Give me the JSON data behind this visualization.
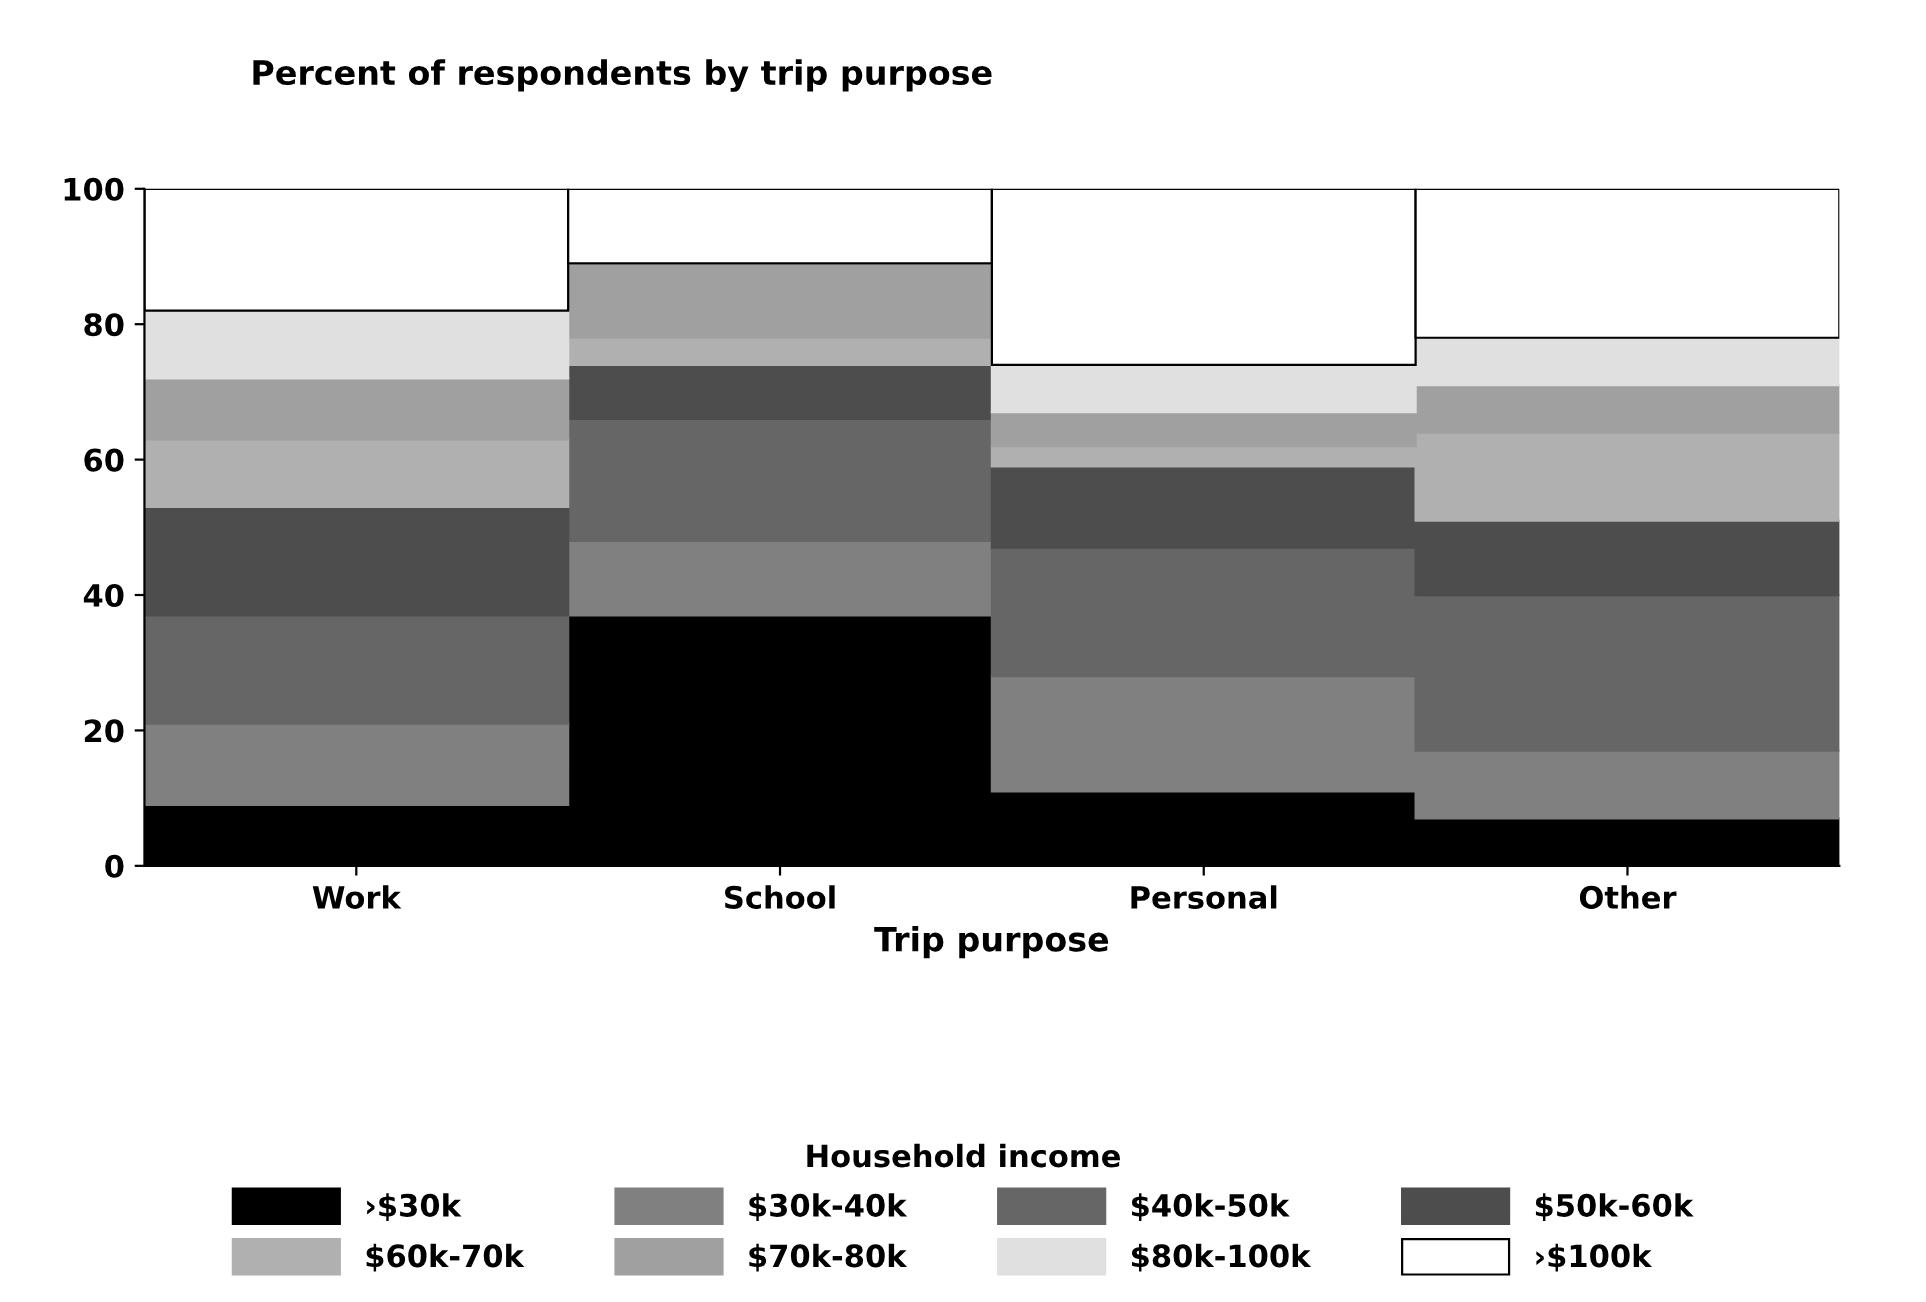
{
  "chart_data": {
    "type": "bar",
    "stacked": true,
    "title": "Percent of respondents by trip purpose",
    "xlabel": "Trip purpose",
    "legend_title": "Household income",
    "categories": [
      "Work",
      "School",
      "Personal",
      "Other"
    ],
    "series": [
      {
        "name": "›$30k",
        "color": "#000000",
        "values": [
          9,
          37,
          11,
          7
        ]
      },
      {
        "name": "$30k-40k",
        "color": "#808080",
        "values": [
          12,
          11,
          17,
          10
        ]
      },
      {
        "name": "$40k-50k",
        "color": "#666666",
        "values": [
          16,
          18,
          19,
          23
        ]
      },
      {
        "name": "$50k-60k",
        "color": "#4d4d4d",
        "values": [
          16,
          8,
          12,
          11
        ]
      },
      {
        "name": "$60k-70k",
        "color": "#b0b0b0",
        "values": [
          10,
          4,
          3,
          13
        ]
      },
      {
        "name": "$70k-80k",
        "color": "#a0a0a0",
        "values": [
          9,
          11,
          5,
          7
        ]
      },
      {
        "name": "$80k-100k",
        "color": "#e0e0e0",
        "values": [
          10,
          0,
          7,
          7
        ]
      },
      {
        "name": "›$100k",
        "color": "#ffffff",
        "values": [
          18,
          11,
          26,
          22
        ]
      }
    ],
    "ylim": [
      0,
      100
    ],
    "yticks": [
      0,
      20,
      40,
      60,
      80,
      100
    ],
    "grid": false,
    "legend": "bottom"
  }
}
